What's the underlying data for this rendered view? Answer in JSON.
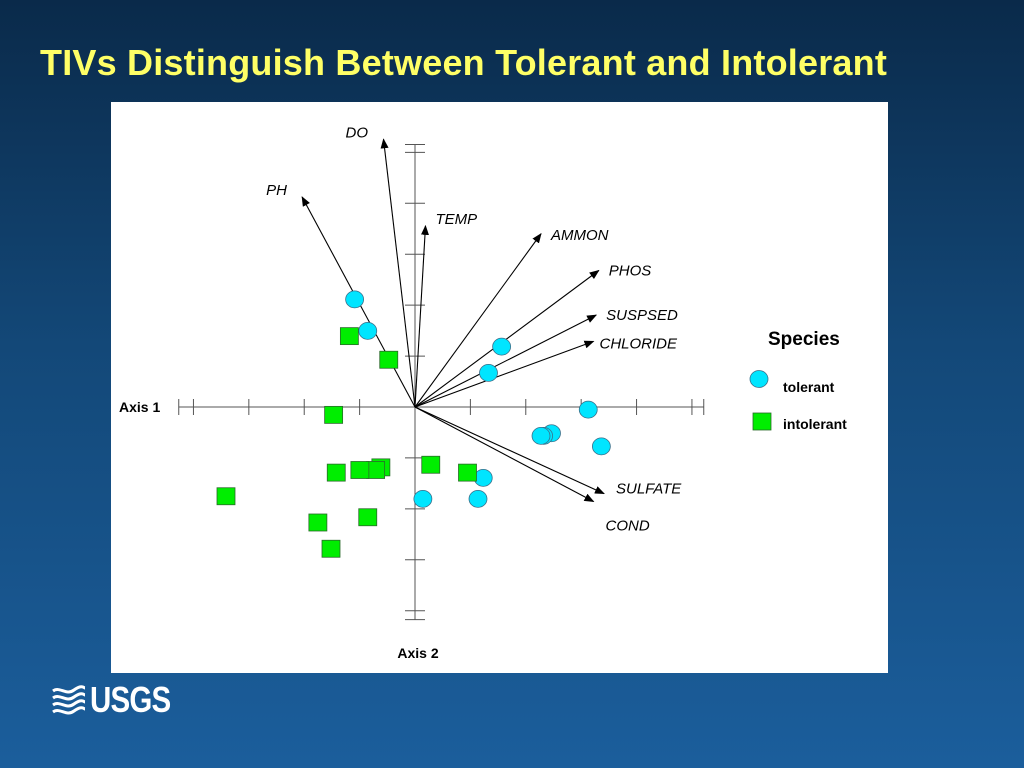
{
  "slide": {
    "title": "TIVs Distinguish Between Tolerant and Intolerant",
    "logo_text": "USGS"
  },
  "colors": {
    "background_top": "#0a2a4a",
    "background_bottom": "#1b5e9c",
    "title": "#ffff66",
    "tolerant": "#00e5ff",
    "intolerant": "#00ee00"
  },
  "chart_data": {
    "type": "scatter",
    "xlabel": "Axis 1",
    "ylabel": "Axis 2",
    "xlim": [
      -4.0,
      5.0
    ],
    "ylim": [
      -4.0,
      5.0
    ],
    "ticks": {
      "x": [
        -4,
        -3,
        -2,
        -1,
        1,
        2,
        3,
        4,
        5
      ],
      "y": [
        -4,
        -3,
        -2,
        -1,
        1,
        2,
        3,
        4,
        5
      ]
    },
    "grid": false,
    "legend": {
      "title": "Species",
      "position": "right",
      "entries": [
        "tolerant",
        "intolerant"
      ]
    },
    "vectors": [
      {
        "label": "DO",
        "x": -0.6,
        "y": 5.1
      },
      {
        "label": "PH",
        "x": -2.15,
        "y": 4.0
      },
      {
        "label": "TEMP",
        "x": 0.2,
        "y": 3.45
      },
      {
        "label": "AMMON",
        "x": 2.4,
        "y": 3.3
      },
      {
        "label": "PHOS",
        "x": 3.5,
        "y": 2.6
      },
      {
        "label": "SUSPSED",
        "x": 3.45,
        "y": 1.75
      },
      {
        "label": "CHLORIDE",
        "x": 3.4,
        "y": 1.25
      },
      {
        "label": "SULFATE",
        "x": 3.6,
        "y": -1.65
      },
      {
        "label": "COND",
        "x": 3.4,
        "y": -1.8
      }
    ],
    "series": [
      {
        "name": "tolerant",
        "marker": "circle",
        "points": [
          [
            -1.15,
            2.05
          ],
          [
            -0.9,
            1.45
          ],
          [
            1.65,
            1.15
          ],
          [
            1.4,
            0.65
          ],
          [
            3.3,
            -0.05
          ],
          [
            2.6,
            -0.5
          ],
          [
            2.45,
            -0.55
          ],
          [
            2.4,
            -0.55
          ],
          [
            3.55,
            -0.75
          ],
          [
            1.3,
            -1.35
          ],
          [
            1.2,
            -1.75
          ],
          [
            0.15,
            -1.75
          ]
        ]
      },
      {
        "name": "intolerant",
        "marker": "square",
        "points": [
          [
            -1.25,
            1.35
          ],
          [
            -0.5,
            0.9
          ],
          [
            -1.55,
            -0.15
          ],
          [
            0.3,
            -1.1
          ],
          [
            -0.65,
            -1.15
          ],
          [
            -0.75,
            -1.2
          ],
          [
            -1.05,
            -1.2
          ],
          [
            1.0,
            -1.25
          ],
          [
            -1.5,
            -1.25
          ],
          [
            -3.6,
            -1.7
          ],
          [
            -0.9,
            -2.1
          ],
          [
            -1.85,
            -2.2
          ],
          [
            -1.6,
            -2.7
          ]
        ]
      }
    ]
  }
}
